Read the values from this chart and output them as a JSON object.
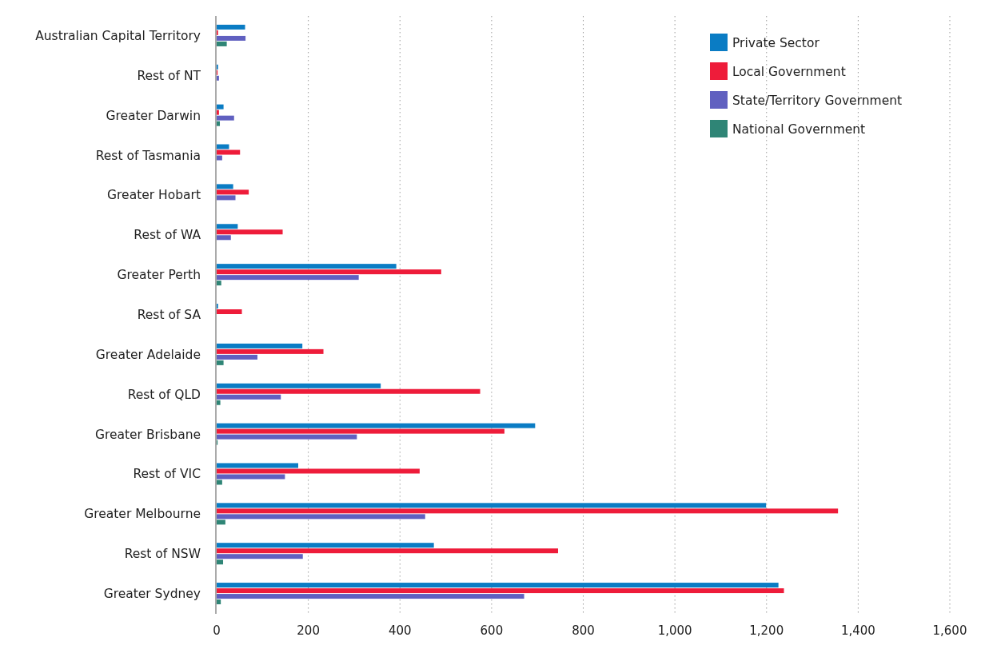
{
  "chart_data": {
    "type": "bar",
    "orientation": "horizontal",
    "categories": [
      "Australian Capital Territory",
      "Rest of NT",
      "Greater Darwin",
      "Rest of Tasmania",
      "Greater Hobart",
      "Rest of WA",
      "Greater Perth",
      "Rest of SA",
      "Greater Adelaide",
      "Rest of QLD",
      "Greater Brisbane",
      "Rest of VIC",
      "Greater Melbourne",
      "Rest of NSW",
      "Greater Sydney"
    ],
    "series": [
      {
        "name": "Private Sector",
        "color": "#0a7cc4",
        "values": [
          62,
          3,
          15,
          27,
          36,
          46,
          392,
          3,
          187,
          358,
          695,
          178,
          1199,
          474,
          1226
        ]
      },
      {
        "name": "Local Government",
        "color": "#ee1c3a",
        "values": [
          3,
          2,
          5,
          51,
          70,
          144,
          490,
          55,
          233,
          575,
          628,
          443,
          1356,
          745,
          1238
        ]
      },
      {
        "name": "State/Territory Government",
        "color": "#6060c0",
        "values": [
          63,
          5,
          38,
          12,
          41,
          31,
          310,
          0,
          89,
          140,
          306,
          149,
          455,
          188,
          671
        ]
      },
      {
        "name": "National Government",
        "color": "#2f8576",
        "values": [
          22,
          0,
          7,
          0,
          0,
          0,
          10,
          0,
          15,
          8,
          2,
          12,
          19,
          14,
          9
        ]
      }
    ],
    "xlim": [
      0,
      1600
    ],
    "xticks": [
      0,
      200,
      400,
      600,
      800,
      {
        "value": 1000,
        "label": "1,000"
      },
      {
        "value": 1200,
        "label": "1,200"
      },
      {
        "value": 1400,
        "label": "1,400"
      },
      {
        "value": 1600,
        "label": "1,600"
      }
    ],
    "grid": "x",
    "legend": "top right"
  }
}
